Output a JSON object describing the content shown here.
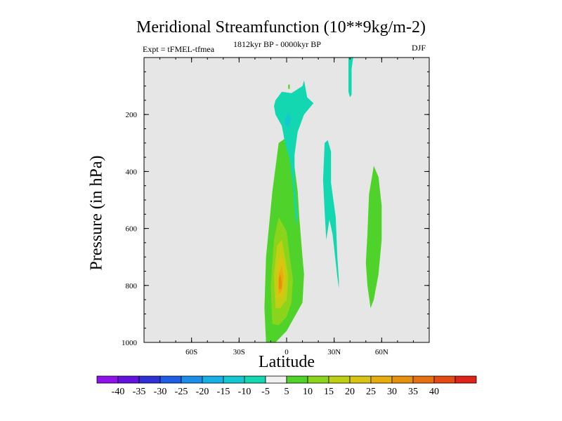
{
  "title": "Meridional Streamfunction (10**9kg/m-2)",
  "subtitle_left": "Expt = tFMEL-tfmea",
  "subtitle_center": "1812kyr BP - 0000kyr BP",
  "subtitle_right": "DJF",
  "colors": {
    "plot_background": "#e6e6e6",
    "colorbar": [
      "#8f12ea",
      "#6512e0",
      "#3030d6",
      "#1e5ee6",
      "#1a8ee8",
      "#16b1e4",
      "#14c8d2",
      "#12d7b0",
      "#f0f0f0",
      "#4fd32a",
      "#8bd41c",
      "#bfcf14",
      "#dbc411",
      "#e6ad0c",
      "#e6900c",
      "#e66f0f",
      "#e44a12",
      "#e0231a"
    ]
  },
  "chart_data": {
    "type": "filled-contour",
    "title": "Meridional Streamfunction (10**9kg/m-2)",
    "xlabel": "Latitude",
    "ylabel": "Pressure (in hPa)",
    "xlim": [
      -90,
      90
    ],
    "ylim": [
      1000,
      0
    ],
    "x_ticks": [
      {
        "value": -60,
        "label": "60S"
      },
      {
        "value": -30,
        "label": "30S"
      },
      {
        "value": 0,
        "label": "0"
      },
      {
        "value": 30,
        "label": "30N"
      },
      {
        "value": 60,
        "label": "60N"
      }
    ],
    "y_ticks": [
      {
        "value": 200,
        "label": "200"
      },
      {
        "value": 400,
        "label": "400"
      },
      {
        "value": 600,
        "label": "600"
      },
      {
        "value": 800,
        "label": "800"
      },
      {
        "value": 1000,
        "label": "1000"
      }
    ],
    "colorbar_levels": [
      -40,
      -35,
      -30,
      -25,
      -20,
      -15,
      -10,
      -5,
      5,
      10,
      15,
      20,
      25,
      30,
      35,
      40
    ],
    "cells": [
      {
        "name": "tropical-cell-lower",
        "level": 5,
        "points": [
          [
            -13,
            1000
          ],
          [
            -14,
            880
          ],
          [
            -13,
            700
          ],
          [
            -9,
            470
          ],
          [
            -5,
            300
          ],
          [
            0,
            280
          ],
          [
            4,
            340
          ],
          [
            7,
            470
          ],
          [
            8,
            560
          ],
          [
            10,
            700
          ],
          [
            11,
            760
          ],
          [
            10,
            860
          ],
          [
            0,
            960
          ],
          [
            -7,
            1000
          ],
          [
            -13,
            1000
          ]
        ]
      },
      {
        "name": "tropical-cell-lower",
        "level": 10,
        "points": [
          [
            -9,
            935
          ],
          [
            -10,
            800
          ],
          [
            -8,
            640
          ],
          [
            -5,
            560
          ],
          [
            0,
            610
          ],
          [
            2,
            700
          ],
          [
            4,
            780
          ],
          [
            3,
            860
          ],
          [
            0,
            910
          ],
          [
            -5,
            940
          ],
          [
            -9,
            935
          ]
        ]
      },
      {
        "name": "tropical-cell-lower",
        "level": 15,
        "points": [
          [
            -7,
            880
          ],
          [
            -8,
            760
          ],
          [
            -6,
            660
          ],
          [
            -3,
            640
          ],
          [
            -1,
            700
          ],
          [
            1,
            770
          ],
          [
            0,
            850
          ],
          [
            -4,
            880
          ],
          [
            -7,
            880
          ]
        ]
      },
      {
        "name": "tropical-cell-lower",
        "level": 20,
        "points": [
          [
            -6,
            850
          ],
          [
            -6,
            750
          ],
          [
            -4,
            690
          ],
          [
            -2,
            710
          ],
          [
            -1,
            780
          ],
          [
            -2,
            840
          ],
          [
            -6,
            850
          ]
        ]
      },
      {
        "name": "tropical-cell-lower",
        "level": 25,
        "points": [
          [
            -5,
            830
          ],
          [
            -5,
            760
          ],
          [
            -3,
            730
          ],
          [
            -2,
            770
          ],
          [
            -3,
            820
          ],
          [
            -5,
            830
          ]
        ]
      },
      {
        "name": "tropical-cell-lower",
        "level": 30,
        "points": [
          [
            -5,
            815
          ],
          [
            -5,
            775
          ],
          [
            -4,
            760
          ],
          [
            -3,
            790
          ],
          [
            -3,
            810
          ],
          [
            -5,
            815
          ]
        ]
      },
      {
        "name": "tropical-cell-upper",
        "level": -5,
        "points": [
          [
            -7,
            150
          ],
          [
            -3,
            120
          ],
          [
            3,
            125
          ],
          [
            10,
            100
          ],
          [
            11,
            80
          ],
          [
            13,
            140
          ],
          [
            17,
            160
          ],
          [
            11,
            200
          ],
          [
            7,
            260
          ],
          [
            5,
            340
          ],
          [
            5,
            440
          ],
          [
            7,
            560
          ],
          [
            6,
            590
          ],
          [
            4,
            450
          ],
          [
            2,
            360
          ],
          [
            -1,
            300
          ],
          [
            -3,
            240
          ],
          [
            -7,
            200
          ],
          [
            -8,
            170
          ],
          [
            -7,
            150
          ]
        ]
      },
      {
        "name": "tropical-cell-upper",
        "level": -10,
        "points": [
          [
            -3,
            200
          ],
          [
            0,
            170
          ],
          [
            4,
            175
          ],
          [
            7,
            205
          ],
          [
            4,
            245
          ],
          [
            0,
            275
          ],
          [
            -3,
            240
          ],
          [
            -3,
            200
          ]
        ]
      },
      {
        "name": "tropical-cell-upper",
        "level": -15,
        "points": [
          [
            -1,
            215
          ],
          [
            1,
            195
          ],
          [
            3,
            215
          ],
          [
            1,
            245
          ],
          [
            -1,
            235
          ],
          [
            -1,
            215
          ]
        ]
      },
      {
        "name": "upper-ne-spot",
        "level": 5,
        "points": [
          [
            1,
            95
          ],
          [
            2,
            95
          ],
          [
            2,
            110
          ],
          [
            1,
            110
          ],
          [
            1,
            95
          ]
        ]
      },
      {
        "name": "ne-upper-strip",
        "level": -5,
        "points": [
          [
            39,
            0
          ],
          [
            42,
            0
          ],
          [
            41,
            40
          ],
          [
            41,
            130
          ],
          [
            40,
            140
          ],
          [
            39,
            120
          ],
          [
            39,
            40
          ],
          [
            39,
            0
          ]
        ]
      },
      {
        "name": "nh-mid-cell",
        "level": -5,
        "points": [
          [
            24,
            300
          ],
          [
            26,
            290
          ],
          [
            28,
            330
          ],
          [
            28,
            440
          ],
          [
            31,
            560
          ],
          [
            32,
            700
          ],
          [
            33,
            780
          ],
          [
            33,
            810
          ],
          [
            32,
            770
          ],
          [
            29,
            620
          ],
          [
            27,
            570
          ],
          [
            25,
            640
          ],
          [
            24,
            540
          ],
          [
            23,
            430
          ],
          [
            24,
            300
          ]
        ]
      },
      {
        "name": "nh-ferrel-cell",
        "level": 5,
        "points": [
          [
            51,
            620
          ],
          [
            52,
            480
          ],
          [
            55,
            380
          ],
          [
            58,
            420
          ],
          [
            60,
            520
          ],
          [
            60,
            640
          ],
          [
            58,
            760
          ],
          [
            55,
            850
          ],
          [
            53,
            880
          ],
          [
            51,
            800
          ],
          [
            50,
            720
          ],
          [
            51,
            620
          ]
        ]
      }
    ]
  }
}
